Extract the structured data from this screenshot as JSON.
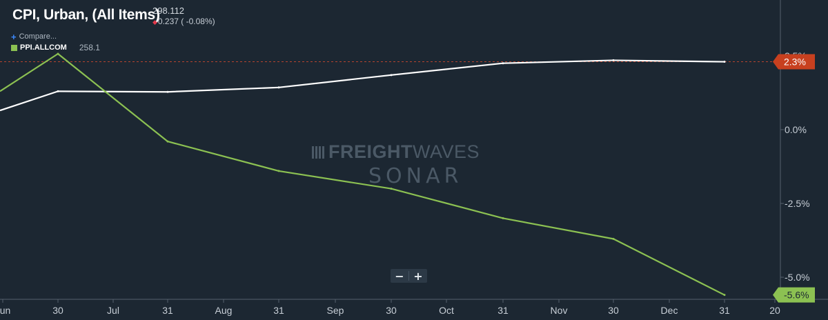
{
  "header": {
    "title": "CPI, Urban, (All Items)",
    "value": "298.112",
    "change": "0.237 ( -0.08%)",
    "change_direction": "down"
  },
  "legend": {
    "compare_label": "Compare...",
    "series_name": "PPI.ALLCOM",
    "series_last": "258.1"
  },
  "watermark": {
    "line1_bold": "FREIGHT",
    "line1_light": "WAVES",
    "line2": "SONAR"
  },
  "zoom": {
    "minus": "−",
    "plus": "+"
  },
  "colors": {
    "background": "#1c2732",
    "cpi_line": "#ffffff",
    "ppi_line": "#8cc152",
    "cpi_badge": "#c8401f",
    "ppi_badge": "#8cc152",
    "ref_line": "#b8442e",
    "axis_text": "#c7ced6"
  },
  "chart_data": {
    "type": "line",
    "x_ticks": [
      "Jun",
      "30",
      "Jul",
      "31",
      "Aug",
      "31",
      "Sep",
      "30",
      "Oct",
      "31",
      "Nov",
      "30",
      "Dec",
      "31",
      "20"
    ],
    "y_ticks": [
      "2.5%",
      "0.0%",
      "-2.5%",
      "-5.0%"
    ],
    "y_tick_values": [
      2.5,
      0.0,
      -2.5,
      -5.0
    ],
    "x_points": [
      "Jun 30",
      "Jul 31",
      "Aug 31",
      "Sep 30",
      "Oct 31",
      "Nov 30",
      "Dec 31"
    ],
    "series": [
      {
        "name": "CPI, Urban, (All Items)",
        "color": "#ffffff",
        "values": [
          1.3,
          1.28,
          1.43,
          1.85,
          2.25,
          2.35,
          2.3
        ],
        "left_edge_value": 0.65,
        "last_label": "2.3%"
      },
      {
        "name": "PPI.ALLCOM",
        "color": "#8cc152",
        "values": [
          2.57,
          -0.4,
          -1.4,
          -2.0,
          -3.0,
          -3.7,
          -5.6
        ],
        "left_edge_value": 1.3,
        "last_label": "-5.6%"
      }
    ],
    "reference_value": 2.3,
    "grid": false,
    "legend_position": "top-left"
  }
}
